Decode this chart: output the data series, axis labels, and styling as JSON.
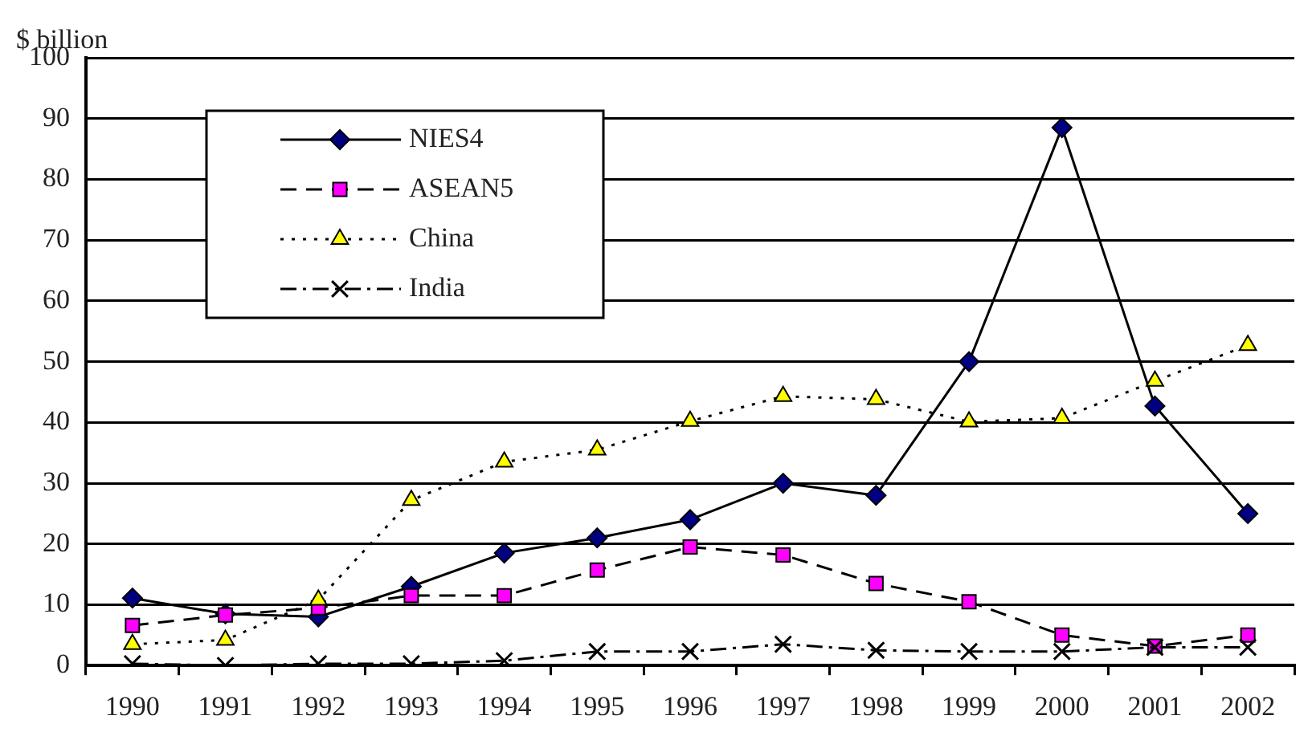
{
  "chart_data": {
    "type": "line",
    "ylabel": "$ billion",
    "categories": [
      "1990",
      "1991",
      "1992",
      "1993",
      "1994",
      "1995",
      "1996",
      "1997",
      "1998",
      "1999",
      "2000",
      "2001",
      "2002"
    ],
    "series": [
      {
        "name": "NIES4",
        "color": "#000080",
        "marker": "diamond",
        "line_style": "solid",
        "values": [
          11.1,
          8.5,
          8,
          13,
          18.5,
          21,
          24,
          30,
          28,
          50,
          88.5,
          42.7,
          25
        ]
      },
      {
        "name": "ASEAN5",
        "color": "#ff00ff",
        "marker": "square",
        "line_style": "dashed",
        "values": [
          6.6,
          8.3,
          9.5,
          11.5,
          11.5,
          15.7,
          19.5,
          18.2,
          13.5,
          10.5,
          5,
          3.2,
          5
        ]
      },
      {
        "name": "China",
        "color": "#ffff00",
        "marker": "triangle",
        "line_style": "dotted",
        "values": [
          3.5,
          4.2,
          10.8,
          27.2,
          33.5,
          35.5,
          40.2,
          44.3,
          43.8,
          40.1,
          40.7,
          46.8,
          52.7
        ]
      },
      {
        "name": "India",
        "color": "#000000",
        "marker": "cross",
        "line_style": "dashdot",
        "values": [
          0.3,
          0,
          0.3,
          0.3,
          0.8,
          2.3,
          2.3,
          3.5,
          2.5,
          2.3,
          2.3,
          3,
          3
        ]
      }
    ],
    "ylim": [
      0,
      100
    ],
    "yticks": [
      0,
      10,
      20,
      30,
      40,
      50,
      60,
      70,
      80,
      90,
      100
    ],
    "grid": "y",
    "legend": "top left"
  }
}
